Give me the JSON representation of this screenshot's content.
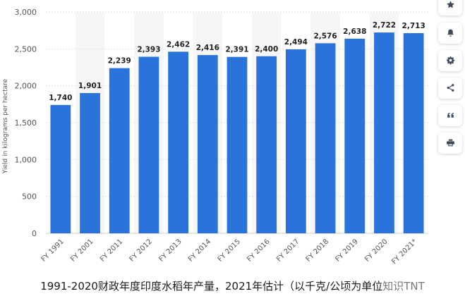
{
  "chart_data": {
    "type": "bar",
    "categories": [
      "FY 1991",
      "FY 2001",
      "FY 2011",
      "FY 2012",
      "FY 2013",
      "FY 2014",
      "FY 2015",
      "FY 2016",
      "FY 2017",
      "FY 2018",
      "FY 2019",
      "FY 2020",
      "FY 2021*"
    ],
    "values": [
      1740,
      1901,
      2239,
      2393,
      2462,
      2416,
      2391,
      2400,
      2494,
      2576,
      2638,
      2722,
      2713
    ],
    "value_labels": [
      "1,740",
      "1,901",
      "2,239",
      "2,393",
      "2,462",
      "2,416",
      "2,391",
      "2,400",
      "2,494",
      "2,576",
      "2,638",
      "2,722",
      "2,713"
    ],
    "ylabel": "Yield in kilograms per hectare",
    "xlabel": "",
    "ylim": [
      0,
      3000
    ],
    "yticks": [
      0,
      500,
      1000,
      1500,
      2000,
      2500,
      3000
    ],
    "ytick_labels": [
      "0",
      "500",
      "1,000",
      "1,500",
      "2,000",
      "2,500",
      "3,000"
    ],
    "bar_color": "#2a73db",
    "alt_band_color": "#f6f6f6",
    "grid": true
  },
  "caption": {
    "text": "1991-2020财政年度印度水稻年产量，2021年估计（以千克/公顷为单位",
    "watermark": "知识TNT"
  },
  "toolbar": {
    "icons": [
      "star-icon",
      "bell-icon",
      "gear-icon",
      "share-icon",
      "quote-icon",
      "print-icon"
    ],
    "icon_color": "#3c4a5c"
  }
}
